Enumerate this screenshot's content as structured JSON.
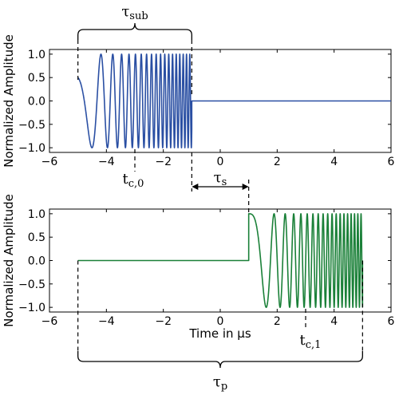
{
  "colors": {
    "top_signal": "#2a4fa3",
    "bottom_signal": "#1a8038",
    "axes": "#000000",
    "annotation": "#000000"
  },
  "annotations": {
    "tau_sub": {
      "base": "τ",
      "sub": "sub"
    },
    "tau_s": {
      "base": "τ",
      "sub": "s"
    },
    "tau_p": {
      "base": "τ",
      "sub": "p"
    },
    "tc0": {
      "base": "t",
      "sub": "c,0"
    },
    "tc1": {
      "base": "t",
      "sub": "c,1"
    }
  },
  "chart_data": [
    {
      "type": "line",
      "ylabel": "Normalized Amplitude",
      "xlabel": "",
      "xlim": [
        -6,
        6
      ],
      "ylim": [
        -1.1,
        1.1
      ],
      "xticks": [
        -6,
        -4,
        -2,
        0,
        2,
        4,
        6
      ],
      "yticks": [
        1.0,
        0.5,
        0.0,
        -0.5,
        -1.0
      ],
      "xtick_labels": [
        "−6",
        "−4",
        "−2",
        "0",
        "2",
        "4",
        "6"
      ],
      "ytick_labels": [
        "1.0",
        "0.5",
        "0.0",
        "−0.5",
        "−1.0"
      ],
      "grid": false,
      "series": [
        {
          "signal": "linear chirp (cosine) from t = -5 to t = -1 µs, zero elsewhere",
          "t_start": -5,
          "t_end": -1,
          "center_time": -3,
          "x_end": 6,
          "start_amplitude": 0.5,
          "color": "#2a4fa3"
        }
      ]
    },
    {
      "type": "line",
      "ylabel": "Normalized Amplitude",
      "xlabel": "Time in µs",
      "xlim": [
        -6,
        6
      ],
      "ylim": [
        -1.1,
        1.1
      ],
      "xticks": [
        -6,
        -4,
        -2,
        0,
        2,
        4,
        6
      ],
      "yticks": [
        1.0,
        0.5,
        0.0,
        -0.5,
        -1.0
      ],
      "xtick_labels": [
        "−6",
        "−4",
        "−2",
        "0",
        "2",
        "4",
        "6"
      ],
      "ytick_labels": [
        "1.0",
        "0.5",
        "0.0",
        "−0.5",
        "−1.0"
      ],
      "grid": false,
      "series": [
        {
          "signal": "zero from t = -5 to t = 1 µs, linear chirp (cosine) from t = 1 to t = 5 µs",
          "x_start": -5,
          "t_start": 1,
          "t_end": 5,
          "center_time": 3,
          "x_end": 5,
          "color": "#1a8038"
        }
      ]
    }
  ]
}
